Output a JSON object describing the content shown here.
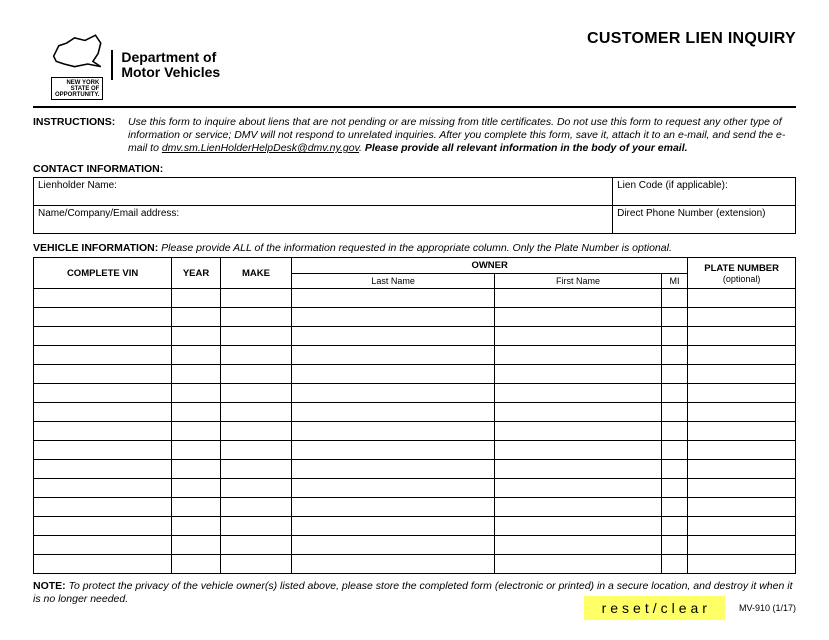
{
  "header": {
    "badge_line1": "NEW YORK",
    "badge_line2": "STATE OF",
    "badge_line3": "OPPORTUNITY.",
    "dept_line1": "Department of",
    "dept_line2": "Motor Vehicles",
    "form_title": "CUSTOMER LIEN INQUIRY"
  },
  "instructions": {
    "label": "INSTRUCTIONS:",
    "text_part1": "Use this form to inquire about liens that are not pending or are missing from title certificates.  Do not use this form to request any other type of information or service; DMV will not respond to unrelated inquiries.  After you complete this form, save it, attach it to an e-mail, and send the e-mail to ",
    "email": "dmv.sm.LienHolderHelpDesk@dmv.ny.gov",
    "text_part2": ".  ",
    "bold_tail": "Please provide all relevant information in the body of your email."
  },
  "contact": {
    "section_label": "CONTACT INFORMATION:",
    "lienholder_label": "Lienholder Name:",
    "liencode_label": "Lien Code (if applicable):",
    "name_company_label": "Name/Company/Email address:",
    "phone_label": "Direct Phone Number (extension)"
  },
  "vehicle": {
    "section_label": "VEHICLE INFORMATION:",
    "section_text": "Please provide ALL of the information requested in the appropriate column.  Only the Plate Number is optional.",
    "columns": {
      "vin": "COMPLETE VIN",
      "year": "YEAR",
      "make": "MAKE",
      "owner": "OWNER",
      "last_name": "Last Name",
      "first_name": "First Name",
      "mi": "MI",
      "plate": "PLATE NUMBER",
      "plate_sub": "(optional)"
    },
    "row_count": 15
  },
  "note": {
    "label": "NOTE:",
    "text": "To protect the privacy of the vehicle owner(s) listed above, please store the completed form (electronic or printed) in a secure location, and destroy it when it is no longer needed."
  },
  "footer": {
    "reset_label": "reset/clear",
    "form_code": "MV-910 (1/17)"
  },
  "colors": {
    "reset_bg": "#ffff66",
    "border": "#000000",
    "background": "#ffffff"
  }
}
